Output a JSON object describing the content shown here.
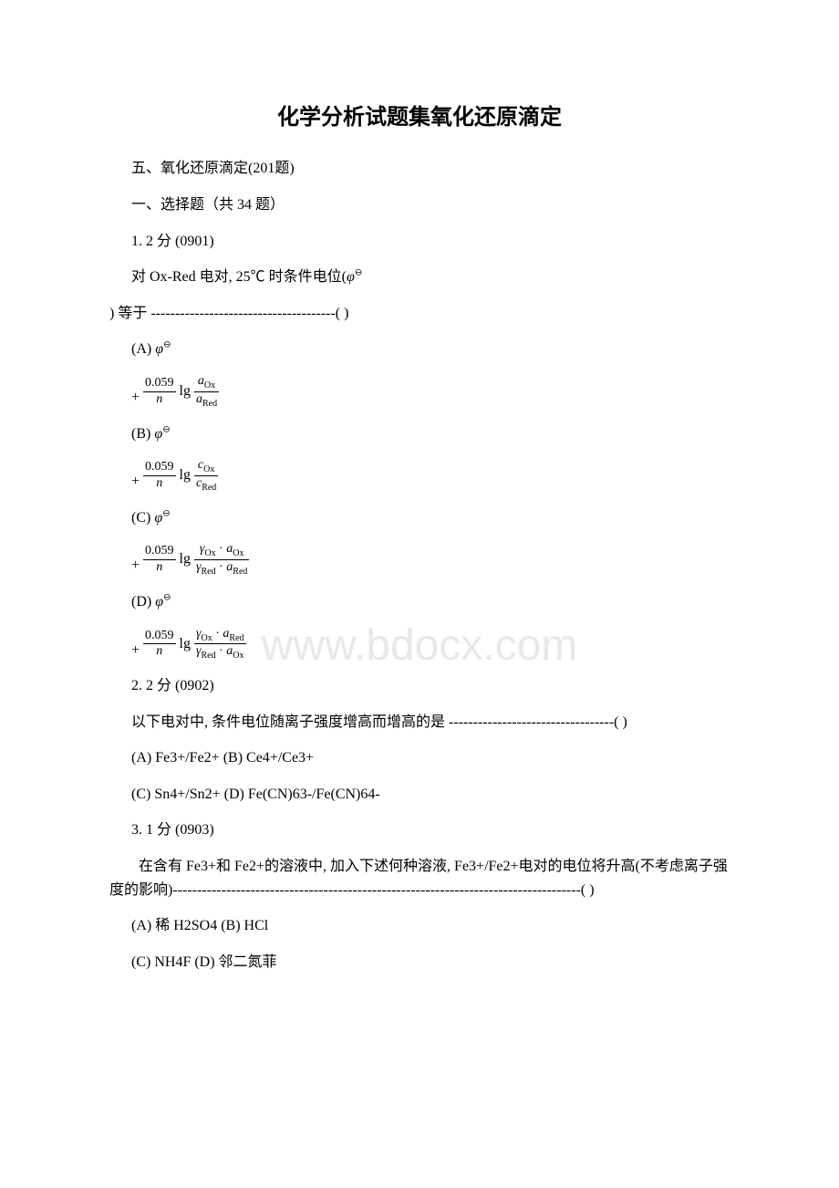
{
  "title": "化学分析试题集氧化还原滴定",
  "section": "五、氧化还原滴定(201题)",
  "subsection": "一、选择题（共 34 题）",
  "watermark": "www.bdocx.com",
  "q1": {
    "header": "1. 2 分 (0901)",
    "text1_prefix": " 对 Ox-Red 电对, 25℃ 时条件电位(",
    "phi_sym": "φ",
    "text2": ") 等于 --------------------------------------( )",
    "optA_label": " (A) ",
    "optB_label": " (B) ",
    "optC_label": " (C) ",
    "optD_label": " (D) ",
    "coef": "0.059",
    "n": "n",
    "lg": "lg",
    "a_Ox": "a",
    "a_Red": "a",
    "c_Ox": "c",
    "c_Red": "c",
    "gamma": "γ",
    "sub_Ox": "Ox",
    "sub_Red": "Red",
    "dot": "·"
  },
  "q2": {
    "header": "2. 2 分 (0902)",
    "text": " 以下电对中, 条件电位随离子强度增高而增高的是 ----------------------------------( )",
    "optAB": " (A) Fe3+/Fe2+ (B) Ce4+/Ce3+",
    "optCD": " (C) Sn4+/Sn2+ (D) Fe(CN)63-/Fe(CN)64-"
  },
  "q3": {
    "header": "3. 1 分 (0903)",
    "text": "　　在含有 Fe3+和 Fe2+的溶液中, 加入下述何种溶液, Fe3+/Fe2+电对的电位将升高(不考虑离子强度的影响)------------------------------------------------------------------------------------( )",
    "optAB": " (A) 稀 H2SO4  (B) HCl",
    "optCD": " (C) NH4F  (D) 邻二氮菲"
  },
  "colors": {
    "text": "#000000",
    "background": "#ffffff",
    "watermark": "#e8e8e8"
  },
  "typography": {
    "title_fontsize": 24,
    "body_fontsize": 16,
    "formula_fontsize": 14,
    "watermark_fontsize": 48
  }
}
